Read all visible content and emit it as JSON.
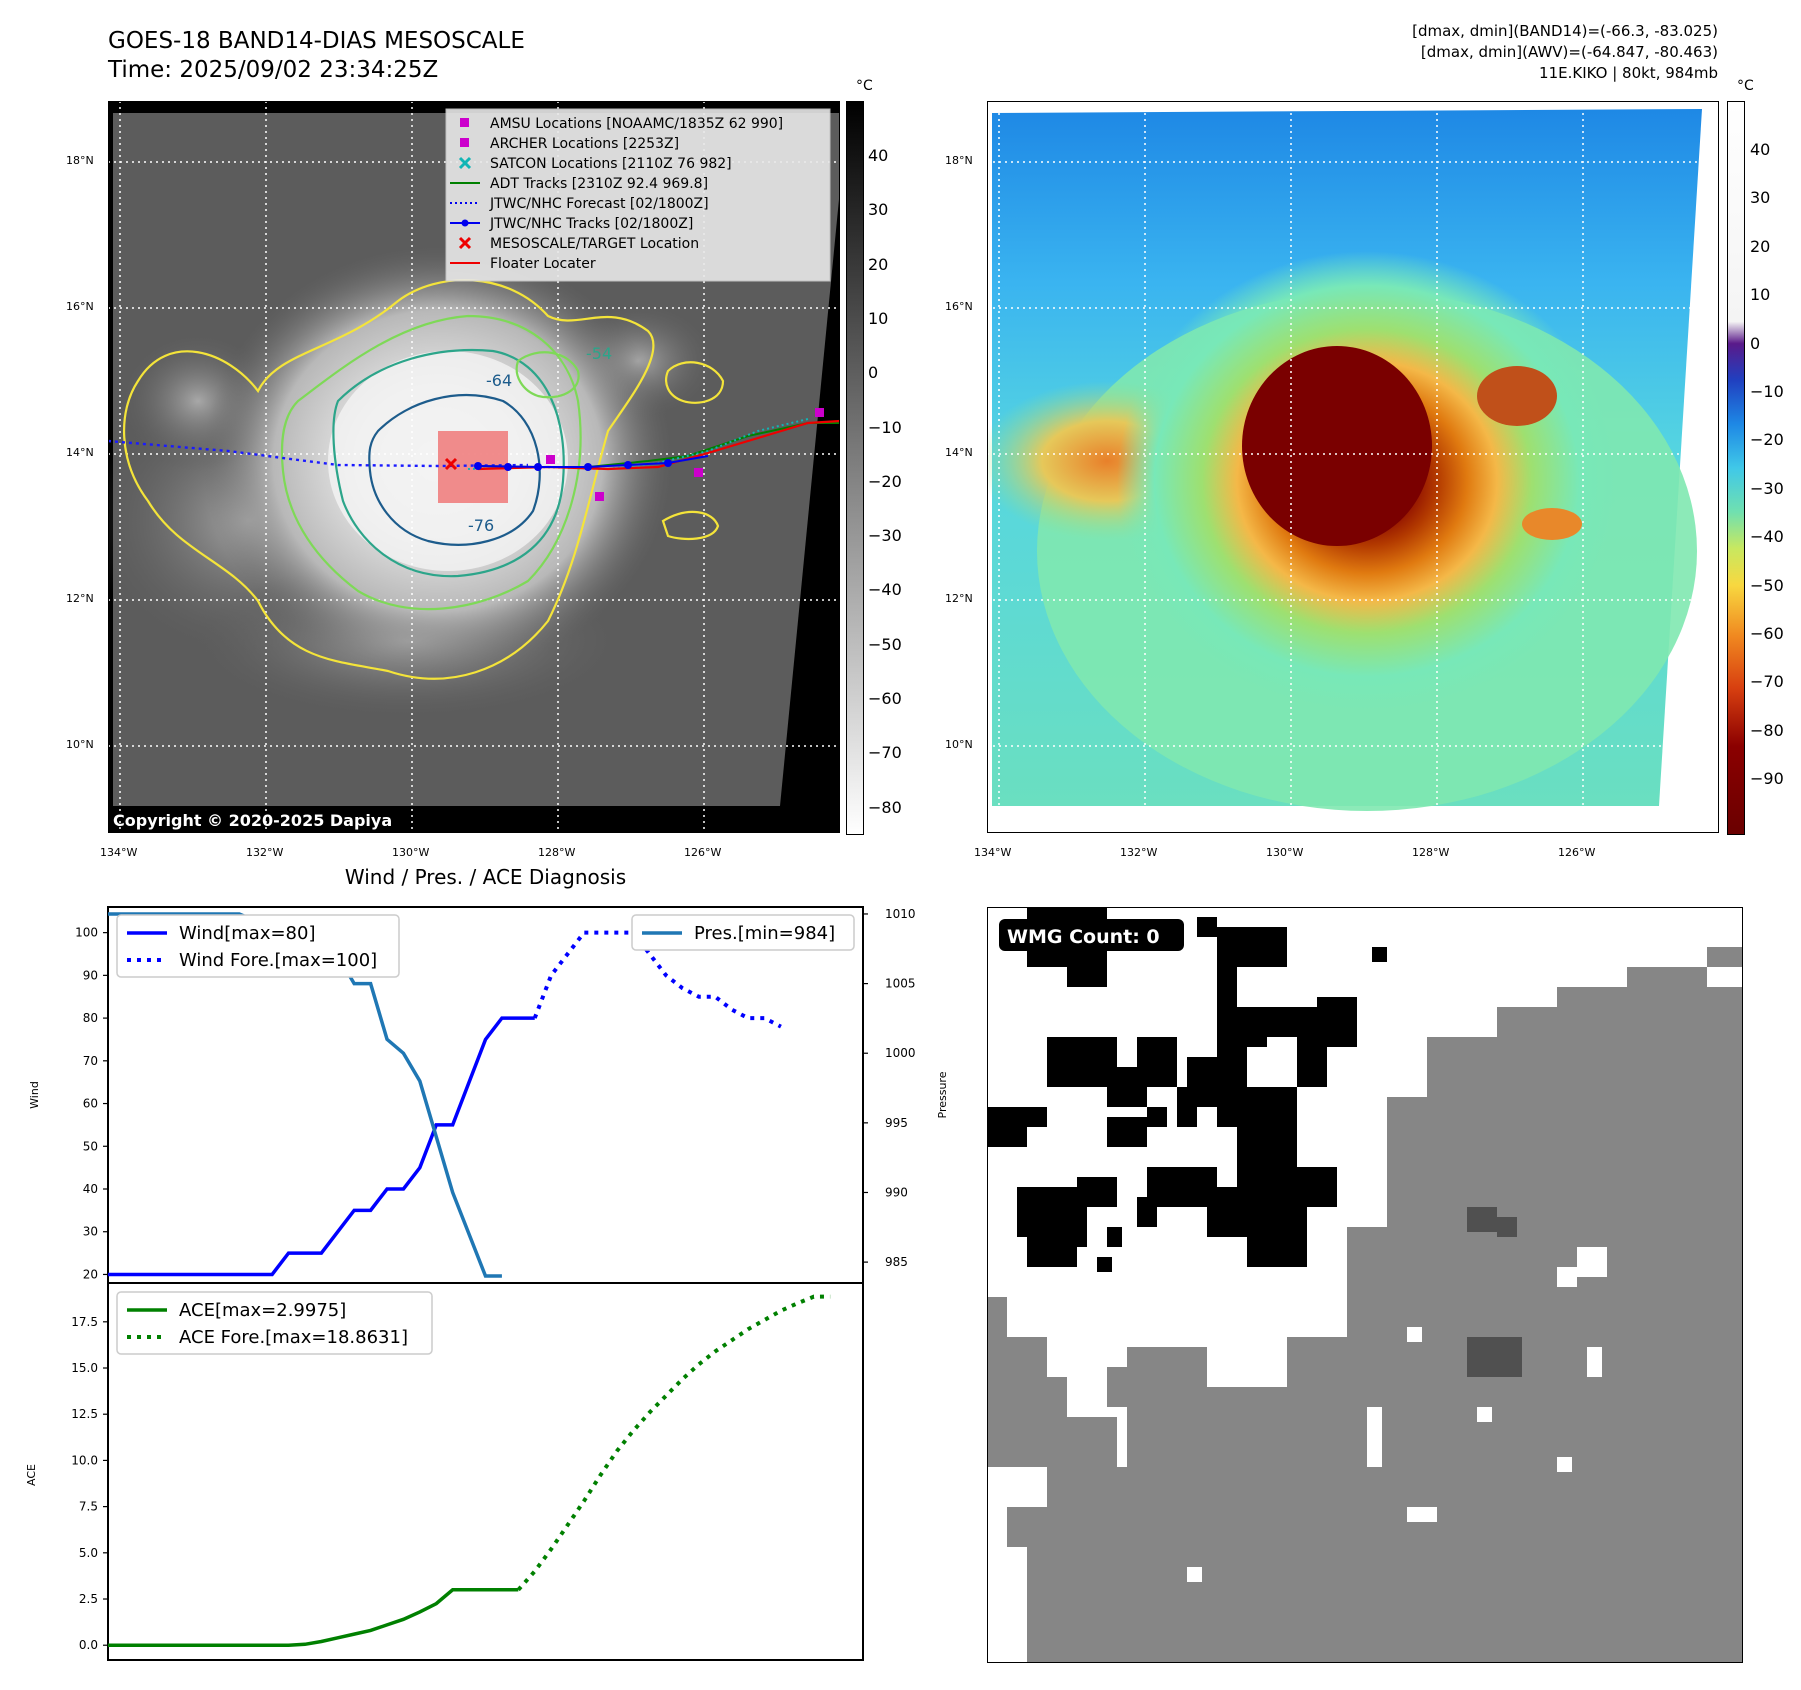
{
  "header": {
    "title_line1": "GOES-18 BAND14-DIAS MESOSCALE",
    "title_line2": "Time: 2025/09/02 23:34:25Z",
    "stat_line1": "[dmax, dmin](BAND14)=(-66.3, -83.025)",
    "stat_line2": "[dmax, dmin](AWV)=(-64.847, -80.463)",
    "stat_line3": "11E.KIKO | 80kt, 984mb"
  },
  "map": {
    "lat_labels": [
      "18°N",
      "16°N",
      "14°N",
      "12°N",
      "10°N"
    ],
    "lon_labels": [
      "134°W",
      "132°W",
      "130°W",
      "128°W",
      "126°W"
    ],
    "contour_labels": [
      "-64",
      "-54",
      "-76"
    ],
    "copyright": "Copyright © 2020-2025 Dapiya",
    "legend": [
      {
        "label": "AMSU Locations [NOAAMC/1835Z 62 990]",
        "color": "#cc00cc",
        "marker": "square"
      },
      {
        "label": "ARCHER Locations [2253Z]",
        "color": "#cc00cc",
        "marker": "square"
      },
      {
        "label": "SATCON Locations [2110Z 76 982]",
        "color": "#11b5b5",
        "marker": "x"
      },
      {
        "label": "ADT Tracks [2310Z 92.4 969.8]",
        "color": "#008000",
        "marker": "line"
      },
      {
        "label": "JTWC/NHC Forecast [02/1800Z]",
        "color": "#0000ee",
        "marker": "dotted"
      },
      {
        "label": "JTWC/NHC Tracks [02/1800Z]",
        "color": "#0000ee",
        "marker": "line-dot"
      },
      {
        "label": "MESOSCALE/TARGET Location",
        "color": "#ee0000",
        "marker": "x"
      },
      {
        "label": "Floater Locater",
        "color": "#ee0000",
        "marker": "line"
      }
    ]
  },
  "colorbar_gray": {
    "unit": "°C",
    "ticks": [
      "40",
      "30",
      "20",
      "10",
      "0",
      "−10",
      "−20",
      "−30",
      "−40",
      "−50",
      "−60",
      "−70",
      "−80"
    ]
  },
  "colorbar_color": {
    "unit": "°C",
    "ticks": [
      "40",
      "30",
      "20",
      "10",
      "0",
      "−10",
      "−20",
      "−30",
      "−40",
      "−50",
      "−60",
      "−70",
      "−80",
      "−90"
    ]
  },
  "wmg": {
    "label": "WMG Count: 0"
  },
  "chart_data": [
    {
      "type": "line",
      "title": "Wind / Pres. / ACE Diagnosis",
      "ylabel": "Wind",
      "ylim": [
        18,
        106
      ],
      "yticks": [
        "100",
        "90",
        "80",
        "70",
        "60",
        "50",
        "40",
        "30",
        "20"
      ],
      "x": [
        0,
        1,
        2,
        3,
        4,
        5,
        6,
        7,
        8,
        9,
        10,
        11,
        12,
        13,
        14,
        15,
        16,
        17,
        18,
        19,
        20,
        21,
        22,
        23,
        24,
        25,
        26,
        27,
        28,
        29,
        30,
        31,
        32,
        33,
        34,
        35,
        36,
        37,
        38,
        39,
        40,
        41,
        42,
        43,
        44,
        45,
        46
      ],
      "series": [
        {
          "name": "Wind[max=80]",
          "color": "#0000ff",
          "style": "solid",
          "x": [
            0,
            1,
            2,
            3,
            4,
            5,
            6,
            7,
            8,
            9,
            10,
            11,
            12,
            13,
            14,
            15,
            16,
            17,
            18,
            19,
            20,
            21,
            22,
            23,
            24,
            25,
            26
          ],
          "values": [
            20,
            20,
            20,
            20,
            20,
            20,
            20,
            20,
            20,
            20,
            20,
            25,
            25,
            25,
            30,
            35,
            35,
            40,
            40,
            45,
            55,
            55,
            65,
            75,
            80,
            80,
            80
          ]
        },
        {
          "name": "Wind Fore.[max=100]",
          "color": "#0000ff",
          "style": "dotted",
          "x": [
            26,
            27,
            28,
            29,
            30,
            31,
            32,
            33,
            34,
            35,
            36,
            37,
            38,
            39,
            40,
            41
          ],
          "values": [
            80,
            90,
            95,
            100,
            100,
            100,
            100,
            95,
            90,
            87,
            85,
            85,
            82,
            80,
            80,
            78
          ]
        }
      ]
    },
    {
      "type": "line",
      "ylabel": "Pressure",
      "axis": "right",
      "ylim": [
        983.5,
        1010.5
      ],
      "yticks": [
        "1010",
        "1005",
        "1000",
        "995",
        "990",
        "985"
      ],
      "series": [
        {
          "name": "Pres.[min=984]",
          "color": "#1f77b4",
          "style": "solid",
          "x": [
            0,
            1,
            2,
            3,
            4,
            5,
            6,
            7,
            8,
            9,
            10,
            11,
            12,
            13,
            14,
            15,
            16,
            17,
            18,
            19,
            20,
            21,
            22,
            23,
            24
          ],
          "values": [
            1010,
            1010,
            1010,
            1010,
            1010,
            1010,
            1010,
            1010,
            1010,
            1009.5,
            1009,
            1009,
            1009,
            1008,
            1007,
            1005,
            1005,
            1001,
            1000,
            998,
            994,
            990,
            987,
            984,
            984
          ]
        }
      ]
    },
    {
      "type": "line",
      "ylabel": "ACE",
      "ylim": [
        -0.8,
        19.6
      ],
      "yticks": [
        "17.5",
        "15.0",
        "12.5",
        "10.0",
        "7.5",
        "5.0",
        "2.5",
        "0.0"
      ],
      "series": [
        {
          "name": "ACE[max=2.9975]",
          "color": "#008000",
          "style": "solid",
          "x": [
            0,
            1,
            2,
            3,
            4,
            5,
            6,
            7,
            8,
            9,
            10,
            11,
            12,
            13,
            14,
            15,
            16,
            17,
            18,
            19,
            20,
            21,
            22,
            23,
            24,
            25
          ],
          "values": [
            0,
            0,
            0,
            0,
            0,
            0,
            0,
            0,
            0,
            0,
            0,
            0,
            0.05,
            0.2,
            0.4,
            0.6,
            0.8,
            1.1,
            1.4,
            1.8,
            2.25,
            3.0,
            3.0,
            3.0,
            3.0,
            3.0
          ]
        },
        {
          "name": "ACE Fore.[max=18.8631]",
          "color": "#008000",
          "style": "dotted",
          "x": [
            25,
            26,
            27,
            28,
            29,
            30,
            31,
            32,
            33,
            34,
            35,
            36,
            37,
            38,
            39,
            40,
            41,
            42,
            43,
            44
          ],
          "values": [
            3.0,
            4.0,
            5.2,
            6.5,
            7.8,
            9.2,
            10.5,
            11.6,
            12.6,
            13.5,
            14.4,
            15.2,
            15.9,
            16.5,
            17.1,
            17.6,
            18.1,
            18.5,
            18.86,
            18.86
          ]
        }
      ]
    }
  ]
}
